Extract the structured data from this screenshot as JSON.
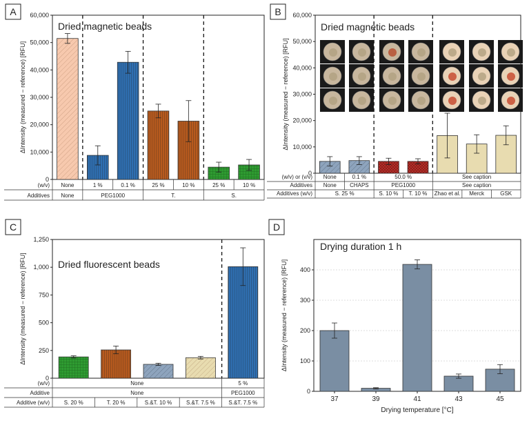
{
  "chart_data": [
    {
      "type": "bar",
      "panel": "A",
      "title": "Dried magnetic beads",
      "ylabel": "ΔIntensity (measured − reference) [RFU]",
      "ylim": [
        0,
        60000
      ],
      "yticks": [
        "0",
        "10,000",
        "20,000",
        "30,000",
        "40,000",
        "50,000",
        "60,000"
      ],
      "bars": [
        {
          "value": 51500,
          "err": 1800,
          "color": "#f7c9ae",
          "pattern": "diag-light"
        },
        {
          "value": 8800,
          "err": 3500,
          "color": "#2f6fb1",
          "pattern": "vert"
        },
        {
          "value": 42800,
          "err": 4000,
          "color": "#2f6fb1",
          "pattern": "vert"
        },
        {
          "value": 25000,
          "err": 2500,
          "color": "#b75a1e",
          "pattern": "vert"
        },
        {
          "value": 21300,
          "err": 7500,
          "color": "#b75a1e",
          "pattern": "vert"
        },
        {
          "value": 4500,
          "err": 1800,
          "color": "#2e9b31",
          "pattern": "grid"
        },
        {
          "value": 5300,
          "err": 2000,
          "color": "#2e9b31",
          "pattern": "grid"
        }
      ],
      "dividers_after": [
        0,
        2,
        4
      ],
      "table_rows": [
        {
          "label": "(w/v)",
          "cells": [
            {
              "text": "None",
              "span": 1
            },
            {
              "text": "1 %",
              "span": 1
            },
            {
              "text": "0.1 %",
              "span": 1
            },
            {
              "text": "25 %",
              "span": 1
            },
            {
              "text": "10 %",
              "span": 1
            },
            {
              "text": "25 %",
              "span": 1
            },
            {
              "text": "10 %",
              "span": 1
            }
          ]
        },
        {
          "label": "Additives",
          "cells": [
            {
              "text": "None",
              "span": 1
            },
            {
              "text": "PEG1000",
              "span": 2
            },
            {
              "text": "T.",
              "span": 2
            },
            {
              "text": "S.",
              "span": 2
            }
          ]
        }
      ]
    },
    {
      "type": "bar",
      "panel": "B",
      "title": "Dried magnetic beads",
      "ylabel": "ΔIntensity (measured − reference) [RFU]",
      "ylim": [
        0,
        60000
      ],
      "yticks": [
        "0",
        "10,000",
        "20,000",
        "30,000",
        "40,000",
        "50,000",
        "60,000"
      ],
      "bars": [
        {
          "value": 4500,
          "err": 1800,
          "color": "#8ea4bd",
          "pattern": "diag"
        },
        {
          "value": 4800,
          "err": 1500,
          "color": "#8ea4bd",
          "pattern": "diag"
        },
        {
          "value": 4500,
          "err": 1200,
          "color": "#b8312b",
          "pattern": "cross"
        },
        {
          "value": 4500,
          "err": 1000,
          "color": "#b8312b",
          "pattern": "cross"
        },
        {
          "value": 14300,
          "err": 8500,
          "color": "#e8dcb0",
          "pattern": "none"
        },
        {
          "value": 11100,
          "err": 3500,
          "color": "#e8dcb0",
          "pattern": "none"
        },
        {
          "value": 14400,
          "err": 3600,
          "color": "#e8dcb0",
          "pattern": "none"
        }
      ],
      "dividers_after": [
        1,
        3
      ],
      "table_rows": [
        {
          "label": "(w/v) or (v/v)",
          "cells": [
            {
              "text": "None",
              "span": 1
            },
            {
              "text": "0.1 %",
              "span": 1
            },
            {
              "text": "50.0 %",
              "span": 2
            },
            {
              "text": "See caption",
              "span": 3
            }
          ]
        },
        {
          "label": "Additives",
          "cells": [
            {
              "text": "None",
              "span": 1
            },
            {
              "text": "CHAPS",
              "span": 1
            },
            {
              "text": "PEG1000",
              "span": 2
            },
            {
              "text": "See caption",
              "span": 3
            }
          ]
        },
        {
          "label": "Additives (w/v)",
          "cells": [
            {
              "text": "S. 25 %",
              "span": 2
            },
            {
              "text": "S. 10 %",
              "span": 1
            },
            {
              "text": "T. 10 %",
              "span": 1
            },
            {
              "text": "Zhao et al.",
              "span": 1
            },
            {
              "text": "Merck",
              "span": 1
            },
            {
              "text": "GSK",
              "span": 1
            }
          ]
        }
      ]
    },
    {
      "type": "bar",
      "panel": "C",
      "title": "Dried fluorescent beads",
      "ylabel": "ΔIntensity (measured − reference) [RFU]",
      "ylim": [
        0,
        1250
      ],
      "yticks": [
        "0",
        "250",
        "500",
        "750",
        "1,000",
        "1,250"
      ],
      "bars": [
        {
          "value": 192,
          "err": 10,
          "color": "#2e9b31",
          "pattern": "grid"
        },
        {
          "value": 255,
          "err": 35,
          "color": "#b75a1e",
          "pattern": "vert"
        },
        {
          "value": 125,
          "err": 10,
          "color": "#8ea4bd",
          "pattern": "diag"
        },
        {
          "value": 185,
          "err": 12,
          "color": "#e8dcb0",
          "pattern": "diag-light"
        },
        {
          "value": 1005,
          "err": 170,
          "color": "#2f6fb1",
          "pattern": "vert"
        }
      ],
      "dividers_after": [
        3
      ],
      "table_rows": [
        {
          "label": "(w/v)",
          "cells": [
            {
              "text": "None",
              "span": 4
            },
            {
              "text": "5 %",
              "span": 1
            }
          ]
        },
        {
          "label": "Additive",
          "cells": [
            {
              "text": "None",
              "span": 4
            },
            {
              "text": "PEG1000",
              "span": 1
            }
          ]
        },
        {
          "label": "Additive (w/v)",
          "cells": [
            {
              "text": "S. 20 %",
              "span": 1
            },
            {
              "text": "T. 20 %",
              "span": 1
            },
            {
              "text": "S.&T. 10 %",
              "span": 1
            },
            {
              "text": "S.&T. 7.5 %",
              "span": 1
            },
            {
              "text": "S.&T. 7.5 %",
              "span": 1
            }
          ]
        }
      ]
    },
    {
      "type": "bar",
      "panel": "D",
      "title": "Drying duration 1 h",
      "xlabel": "Drying temperature [°C]",
      "ylabel": "ΔIntensity (measured − reference) [RFU]",
      "ylim": [
        0,
        500
      ],
      "yticks": [
        "0",
        "100",
        "200",
        "300",
        "400"
      ],
      "categories": [
        "37",
        "39",
        "41",
        "43",
        "45"
      ],
      "bars": [
        {
          "value": 200,
          "err": 25,
          "color": "#7a8ea3",
          "pattern": "none"
        },
        {
          "value": 10,
          "err": 2,
          "color": "#7a8ea3",
          "pattern": "none"
        },
        {
          "value": 418,
          "err": 15,
          "color": "#7a8ea3",
          "pattern": "none"
        },
        {
          "value": 50,
          "err": 7,
          "color": "#7a8ea3",
          "pattern": "none"
        },
        {
          "value": 73,
          "err": 15,
          "color": "#7a8ea3",
          "pattern": "none"
        }
      ],
      "grid": true
    }
  ]
}
